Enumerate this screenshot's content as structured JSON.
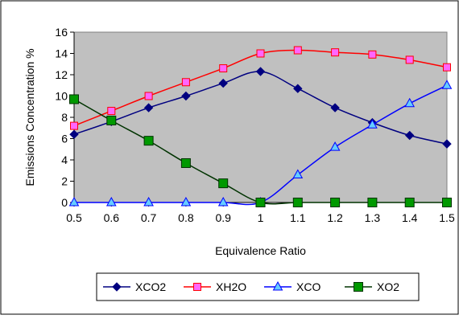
{
  "chart_data": {
    "type": "line",
    "title": "",
    "xlabel": "Equivalence Ratio",
    "ylabel": "Emissions Concentration %",
    "x": [
      0.5,
      0.6,
      0.7,
      0.8,
      0.9,
      1,
      1.1,
      1.2,
      1.3,
      1.4,
      1.5
    ],
    "x_tick_labels": [
      "0.5",
      "0.6",
      "0.7",
      "0.8",
      "0.9",
      "1",
      "1.1",
      "1.2",
      "1.3",
      "1.4",
      "1.5"
    ],
    "ylim": [
      0,
      16
    ],
    "y_ticks": [
      0,
      2,
      4,
      6,
      8,
      10,
      12,
      14,
      16
    ],
    "y_tick_labels": [
      "0",
      "2",
      "4",
      "6",
      "8",
      "10",
      "12",
      "14",
      "16"
    ],
    "grid": false,
    "legend_position": "bottom",
    "plot_background": "#c0c0c0",
    "series": [
      {
        "name": "XCO2",
        "color": "#000080",
        "marker": "diamond",
        "values": [
          6.4,
          7.6,
          8.9,
          10.0,
          11.2,
          12.3,
          10.7,
          8.9,
          7.5,
          6.3,
          5.5
        ]
      },
      {
        "name": "XH2O",
        "color": "#ff0000",
        "marker": "square-pink",
        "values": [
          7.2,
          8.6,
          10.0,
          11.3,
          12.6,
          14.0,
          14.3,
          14.1,
          13.9,
          13.4,
          12.7
        ]
      },
      {
        "name": "XCO",
        "color": "#0000ff",
        "marker": "triangle",
        "values": [
          0,
          0,
          0,
          0,
          0,
          0,
          2.6,
          5.2,
          7.3,
          9.3,
          11.0
        ]
      },
      {
        "name": "XO2",
        "color": "#003300",
        "marker": "square-green",
        "values": [
          9.7,
          7.7,
          5.8,
          3.7,
          1.8,
          0,
          0,
          0,
          0,
          0,
          0
        ]
      }
    ]
  }
}
